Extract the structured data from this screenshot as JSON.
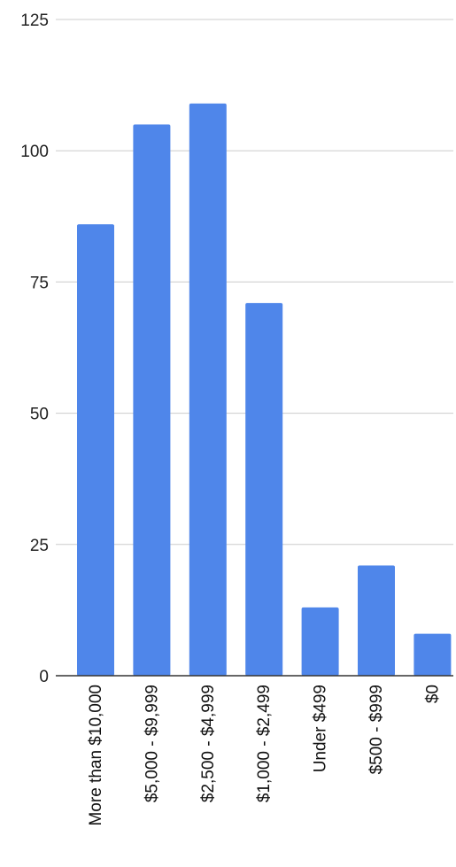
{
  "chart_data": {
    "type": "bar",
    "categories": [
      "More than $10,000",
      "$5,000 - $9,999",
      "$2,500 - $4,999",
      "$1,000 - $2,499",
      "Under $499",
      "$500 - $999",
      "$0"
    ],
    "values": [
      86,
      105,
      109,
      71,
      13,
      21,
      8
    ],
    "ylim": [
      0,
      125
    ],
    "yticks": [
      0,
      25,
      50,
      75,
      100,
      125
    ],
    "title": "",
    "xlabel": "",
    "ylabel": "",
    "grid": true,
    "legend": "none",
    "bar_color": "#4f86ea"
  }
}
